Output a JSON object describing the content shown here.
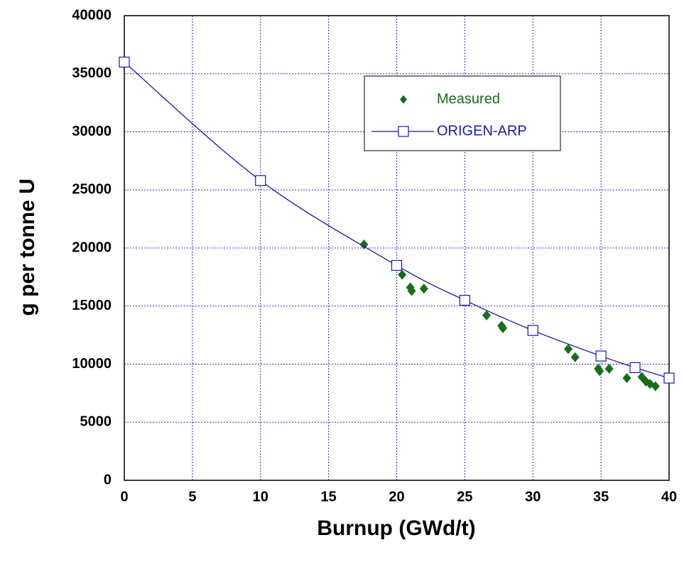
{
  "chart_data": {
    "type": "scatter",
    "x_label": "Burnup (GWd/t)",
    "y_label": "g per tonne U",
    "xlim": [
      0,
      40
    ],
    "xticks": [
      0,
      5,
      10,
      15,
      20,
      25,
      30,
      35,
      40
    ],
    "ylim": [
      0,
      40000
    ],
    "yticks": [
      0,
      5000,
      10000,
      15000,
      20000,
      25000,
      30000,
      35000,
      40000
    ],
    "grid": true,
    "legend": "upper right",
    "series": [
      {
        "name": "Measured",
        "color": "#1a6b1a",
        "marker": "diamond",
        "line": false,
        "x": [
          0,
          17.6,
          20.4,
          21,
          21.1,
          22,
          26.6,
          27.7,
          27.8,
          32.6,
          33.1,
          34.8,
          34.9,
          35.6,
          36.9,
          38,
          38.3,
          38.6,
          39
        ],
        "values": [
          36000,
          20300,
          17700,
          16600,
          16300,
          16500,
          14200,
          13300,
          13100,
          11300,
          10600,
          9600,
          9400,
          9600,
          8800,
          8900,
          8500,
          8300,
          8100
        ]
      },
      {
        "name": "ORIGEN-ARP",
        "color": "#1a1aa0",
        "marker": "square",
        "line": true,
        "x": [
          0,
          10,
          20,
          25,
          30,
          35,
          37.5,
          40
        ],
        "values": [
          36000,
          25800,
          18500,
          15500,
          12900,
          10700,
          9700,
          8800
        ]
      }
    ]
  }
}
